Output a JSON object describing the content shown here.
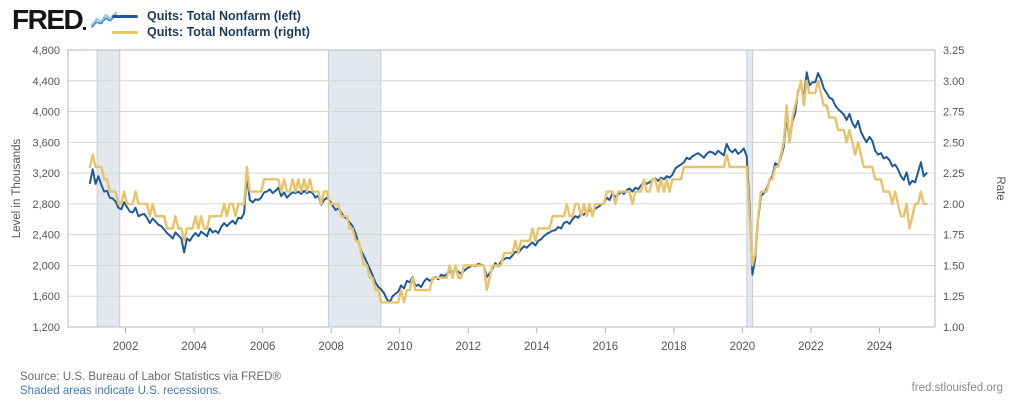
{
  "header": {
    "logo_text": "FRED",
    "sparkline_icon": "fred-sparkline-icon"
  },
  "footer": {
    "source": "Source: U.S. Bureau of Labor Statistics via FRED®",
    "recession_note": "Shaded areas indicate U.S. recessions.",
    "site": "fred.stlouisfed.org"
  },
  "chart_data": {
    "type": "line",
    "frequency": "monthly",
    "x_start_decimal_year": 2000.9583,
    "x_domain": [
      2000.32,
      2025.62
    ],
    "x_tick_years": [
      2002,
      2004,
      2006,
      2008,
      2010,
      2012,
      2014,
      2016,
      2018,
      2020,
      2022,
      2024
    ],
    "left_axis": {
      "label": "Level in Thousands",
      "min": 1200,
      "max": 4800,
      "tick_values": [
        4800,
        4400,
        4000,
        3600,
        3200,
        2800,
        2400,
        2000,
        1600,
        1200
      ],
      "tick_labels": [
        "4,800",
        "4,400",
        "4,000",
        "3,600",
        "3,200",
        "2,800",
        "2,400",
        "2,000",
        "1,600",
        "1,200"
      ]
    },
    "right_axis": {
      "label": "Rate",
      "min": 1.0,
      "max": 3.25,
      "tick_values": [
        3.25,
        3.0,
        2.75,
        2.5,
        2.25,
        2.0,
        1.75,
        1.5,
        1.25,
        1.0
      ],
      "tick_labels": [
        "3.25",
        "3.00",
        "2.75",
        "2.50",
        "2.25",
        "2.00",
        "1.75",
        "1.50",
        "1.25",
        "1.00"
      ]
    },
    "recessions": [
      [
        2001.17,
        2001.83
      ],
      [
        2007.92,
        2009.45
      ],
      [
        2020.13,
        2020.3
      ]
    ],
    "grid": "horizontal-only",
    "legend_position": "top-left",
    "colors": {
      "grid": "#d6d6d6",
      "border": "#b3bac2",
      "recession": "#e3e8ee",
      "recession_edge": "#c6cdd6",
      "xtick_mark": "#9fb9d0"
    },
    "series": [
      {
        "name": "Quits: Total Nonfarm (left)",
        "axis": "left",
        "color": "#1e5a9b",
        "width": 2,
        "values": [
          3070,
          3250,
          3060,
          3160,
          3050,
          2960,
          2970,
          2880,
          2870,
          2830,
          2750,
          2730,
          2820,
          2760,
          2700,
          2690,
          2750,
          2640,
          2660,
          2670,
          2620,
          2550,
          2610,
          2570,
          2530,
          2510,
          2470,
          2420,
          2390,
          2350,
          2430,
          2390,
          2350,
          2170,
          2350,
          2320,
          2380,
          2420,
          2380,
          2440,
          2410,
          2380,
          2480,
          2430,
          2450,
          2420,
          2500,
          2550,
          2510,
          2550,
          2580,
          2540,
          2620,
          2610,
          2680,
          3180,
          2850,
          2820,
          2860,
          2850,
          2880,
          2950,
          2960,
          2990,
          2940,
          2970,
          3010,
          2900,
          2950,
          2880,
          2920,
          2950,
          2940,
          2960,
          2930,
          2970,
          2940,
          2960,
          2940,
          2880,
          2910,
          2790,
          2850,
          2880,
          2840,
          2780,
          2720,
          2740,
          2690,
          2630,
          2610,
          2560,
          2510,
          2420,
          2300,
          2190,
          2120,
          2040,
          1960,
          1870,
          1780,
          1720,
          1690,
          1640,
          1560,
          1520,
          1600,
          1630,
          1660,
          1740,
          1700,
          1800,
          1780,
          1850,
          1730,
          1750,
          1720,
          1790,
          1830,
          1800,
          1820,
          1850,
          1820,
          1880,
          1860,
          1890,
          1920,
          1910,
          1950,
          1920,
          1890,
          1930,
          1960,
          1980,
          2000,
          1990,
          2020,
          2010,
          1990,
          1850,
          1900,
          1960,
          2030,
          1990,
          2050,
          2080,
          2100,
          2090,
          2130,
          2180,
          2160,
          2210,
          2250,
          2230,
          2270,
          2300,
          2260,
          2320,
          2340,
          2380,
          2410,
          2430,
          2450,
          2460,
          2500,
          2480,
          2550,
          2570,
          2540,
          2600,
          2640,
          2620,
          2680,
          2660,
          2700,
          2720,
          2690,
          2740,
          2760,
          2790,
          2810,
          2880,
          2850,
          2940,
          2890,
          2920,
          2960,
          2930,
          2980,
          3000,
          2960,
          3010,
          2990,
          3040,
          3090,
          3060,
          3080,
          3110,
          3130,
          3100,
          3140,
          3120,
          3160,
          3140,
          3180,
          3260,
          3290,
          3310,
          3340,
          3400,
          3380,
          3420,
          3440,
          3460,
          3430,
          3400,
          3450,
          3480,
          3470,
          3440,
          3490,
          3460,
          3430,
          3580,
          3500,
          3470,
          3510,
          3450,
          3480,
          3520,
          3420,
          2790,
          1880,
          2100,
          2600,
          2900,
          2940,
          3000,
          3100,
          3160,
          3330,
          3300,
          3410,
          3540,
          3950,
          3600,
          3870,
          3980,
          4270,
          4360,
          4160,
          4510,
          4340,
          4380,
          4380,
          4500,
          4420,
          4300,
          4240,
          4180,
          4160,
          4080,
          4030,
          4000,
          3960,
          3890,
          3970,
          3850,
          3790,
          3880,
          3740,
          3660,
          3600,
          3670,
          3620,
          3490,
          3440,
          3460,
          3390,
          3410,
          3370,
          3290,
          3310,
          3250,
          3160,
          3110,
          3210,
          3050,
          3100,
          3080,
          3210,
          3340,
          3160,
          3200
        ]
      },
      {
        "name": "Quits: Total Nonfarm (right)",
        "axis": "right",
        "color": "#e9c36a",
        "width": 2.4,
        "values": [
          2.3,
          2.4,
          2.3,
          2.3,
          2.3,
          2.2,
          2.2,
          2.1,
          2.1,
          2.1,
          2.0,
          2.0,
          2.1,
          2.0,
          2.0,
          2.0,
          2.1,
          2.0,
          2.0,
          2.0,
          2.0,
          1.9,
          2.0,
          1.9,
          1.9,
          1.9,
          1.9,
          1.8,
          1.8,
          1.8,
          1.9,
          1.8,
          1.8,
          1.7,
          1.8,
          1.8,
          1.8,
          1.9,
          1.8,
          1.9,
          1.8,
          1.8,
          1.9,
          1.9,
          1.9,
          1.9,
          1.9,
          2.0,
          1.9,
          2.0,
          2.0,
          1.9,
          2.0,
          2.0,
          2.0,
          2.3,
          2.1,
          2.1,
          2.1,
          2.1,
          2.1,
          2.2,
          2.2,
          2.2,
          2.2,
          2.2,
          2.2,
          2.1,
          2.2,
          2.1,
          2.1,
          2.2,
          2.1,
          2.2,
          2.1,
          2.2,
          2.1,
          2.2,
          2.1,
          2.1,
          2.1,
          2.0,
          2.1,
          2.1,
          2.0,
          2.0,
          2.0,
          2.0,
          1.9,
          1.9,
          1.9,
          1.8,
          1.8,
          1.7,
          1.7,
          1.6,
          1.5,
          1.5,
          1.4,
          1.4,
          1.3,
          1.3,
          1.2,
          1.2,
          1.2,
          1.2,
          1.2,
          1.2,
          1.2,
          1.3,
          1.2,
          1.3,
          1.3,
          1.4,
          1.3,
          1.3,
          1.3,
          1.3,
          1.3,
          1.3,
          1.4,
          1.4,
          1.4,
          1.4,
          1.4,
          1.4,
          1.5,
          1.4,
          1.5,
          1.4,
          1.4,
          1.5,
          1.5,
          1.5,
          1.5,
          1.5,
          1.5,
          1.5,
          1.5,
          1.3,
          1.4,
          1.5,
          1.5,
          1.5,
          1.5,
          1.6,
          1.6,
          1.6,
          1.6,
          1.7,
          1.6,
          1.7,
          1.7,
          1.7,
          1.7,
          1.8,
          1.7,
          1.8,
          1.8,
          1.8,
          1.8,
          1.8,
          1.9,
          1.9,
          1.9,
          1.9,
          1.9,
          2.0,
          1.9,
          1.9,
          2.0,
          2.0,
          1.9,
          2.0,
          1.9,
          2.0,
          1.9,
          2.0,
          2.0,
          2.0,
          2.0,
          2.1,
          2.1,
          2.1,
          2.0,
          2.1,
          2.1,
          2.1,
          2.1,
          2.1,
          2.0,
          2.1,
          2.1,
          2.1,
          2.2,
          2.1,
          2.1,
          2.2,
          2.2,
          2.1,
          2.2,
          2.1,
          2.2,
          2.1,
          2.2,
          2.2,
          2.2,
          2.2,
          2.3,
          2.3,
          2.3,
          2.3,
          2.3,
          2.3,
          2.3,
          2.3,
          2.3,
          2.3,
          2.3,
          2.3,
          2.3,
          2.3,
          2.3,
          2.4,
          2.3,
          2.3,
          2.3,
          2.3,
          2.3,
          2.3,
          2.3,
          1.9,
          1.5,
          1.6,
          1.9,
          2.1,
          2.1,
          2.1,
          2.2,
          2.2,
          2.3,
          2.3,
          2.4,
          2.5,
          2.8,
          2.5,
          2.7,
          2.8,
          2.9,
          3.0,
          2.8,
          3.0,
          2.9,
          2.9,
          2.9,
          3.0,
          2.9,
          2.8,
          2.8,
          2.7,
          2.7,
          2.7,
          2.6,
          2.6,
          2.6,
          2.5,
          2.6,
          2.5,
          2.4,
          2.5,
          2.4,
          2.3,
          2.3,
          2.3,
          2.3,
          2.2,
          2.2,
          2.2,
          2.1,
          2.1,
          2.1,
          2.0,
          2.1,
          2.0,
          1.9,
          1.9,
          2.0,
          1.8,
          1.9,
          2.0,
          2.0,
          2.1,
          2.0,
          2.0
        ]
      }
    ]
  }
}
